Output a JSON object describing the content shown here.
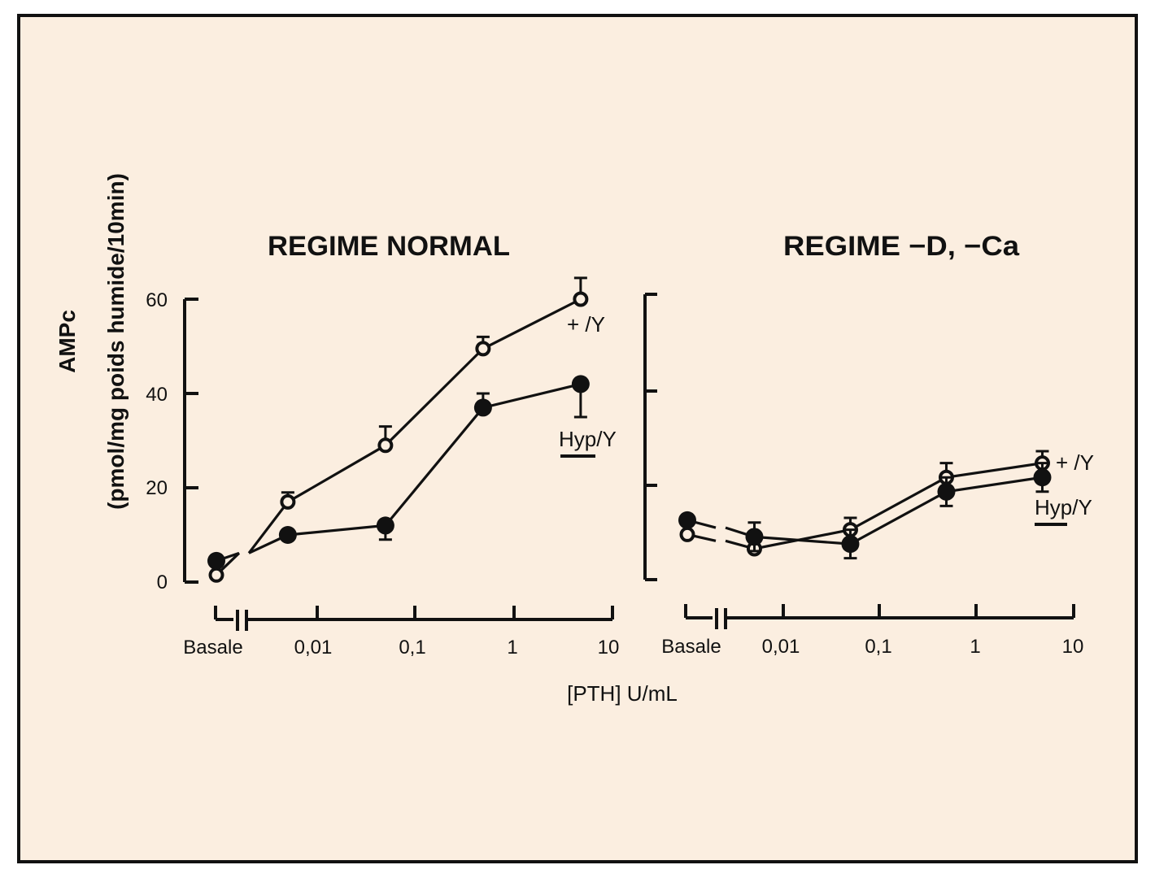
{
  "colors": {
    "background": "#fbeee0",
    "ink": "#111111",
    "frame": "#111111"
  },
  "chart_data": [
    {
      "type": "line",
      "title": "REGIME NORMAL",
      "ylabel_line1": "AMPc",
      "ylabel_line2": "(pmol/mg poids humide/10min)",
      "xlabel": "[PTH] U/mL",
      "ylim": [
        0,
        60
      ],
      "y_ticks": [
        0,
        20,
        40,
        60
      ],
      "y_tick_labels": [
        "0",
        "20",
        "40",
        "60"
      ],
      "x_tick_labels": [
        "Basale",
        "0,01",
        "0,1",
        "1",
        "10"
      ],
      "x_scale": "log (PTH dose, U/mL), with broken axis after Basale",
      "series": [
        {
          "name": "+/Y",
          "label_text": "+ /Y",
          "marker": "open-circle",
          "x": [
            "Basale",
            0.005,
            0.05,
            0.5,
            5
          ],
          "y": [
            1.5,
            17,
            29,
            49.5,
            60
          ],
          "error": [
            0,
            2,
            4,
            2.5,
            4.5
          ]
        },
        {
          "name": "Hyp/Y",
          "label_text": "Hyp/Y",
          "marker": "filled-circle",
          "x": [
            "Basale",
            0.005,
            0.05,
            0.5,
            5
          ],
          "y": [
            4.5,
            10,
            12,
            37,
            42
          ],
          "error": [
            0,
            0,
            3,
            3,
            7
          ]
        }
      ]
    },
    {
      "type": "line",
      "title": "REGIME −D, −Ca",
      "xlabel": "[PTH] U/mL",
      "ylim": [
        0,
        60
      ],
      "y_ticks": [
        0,
        20,
        40,
        60
      ],
      "x_tick_labels": [
        "Basale",
        "0,01",
        "0,1",
        "1",
        "10"
      ],
      "x_scale": "log (PTH dose, U/mL), with broken axis after Basale",
      "series": [
        {
          "name": "+/Y",
          "label_text": "+ /Y",
          "marker": "open-circle",
          "x": [
            "Basale",
            0.005,
            0.05,
            0.5,
            5
          ],
          "y": [
            9.5,
            6.5,
            10.5,
            21.5,
            24.5
          ],
          "error": [
            0,
            3,
            2.5,
            3,
            2.5
          ]
        },
        {
          "name": "Hyp/Y",
          "label_text": "Hyp/Y",
          "marker": "filled-circle",
          "x": [
            "Basale",
            0.005,
            0.05,
            0.5,
            5
          ],
          "y": [
            12.5,
            9,
            7.5,
            18.5,
            21.5
          ],
          "error": [
            0,
            3,
            3,
            3,
            3
          ]
        }
      ]
    }
  ]
}
